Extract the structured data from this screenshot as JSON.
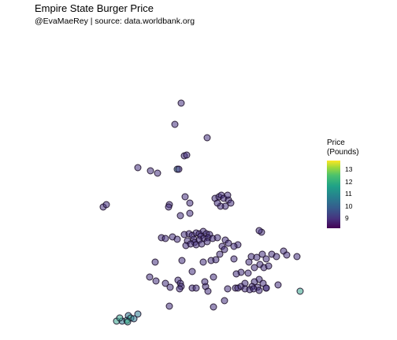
{
  "title": "Empire State Burger Price",
  "subtitle": "@EvaMaeRey | source: data.worldbank.org",
  "legend": {
    "title_line1": "Price",
    "title_line2": "(Pounds)",
    "ticks": [
      "13",
      "12",
      "11",
      "10",
      "9"
    ],
    "range": [
      8.2,
      13.6
    ]
  },
  "colors": {
    "fill_default": "#46327e",
    "outline": "#1a0a2a",
    "viridis": [
      "#440154",
      "#46327e",
      "#365c8d",
      "#277f8e",
      "#1fa187",
      "#4ac16d",
      "#a0da39",
      "#fde725"
    ]
  },
  "chart_data": {
    "type": "scatter",
    "description_kind": "map of New York State towns colored by burger price",
    "x_label": "",
    "y_label": ""
  }
}
